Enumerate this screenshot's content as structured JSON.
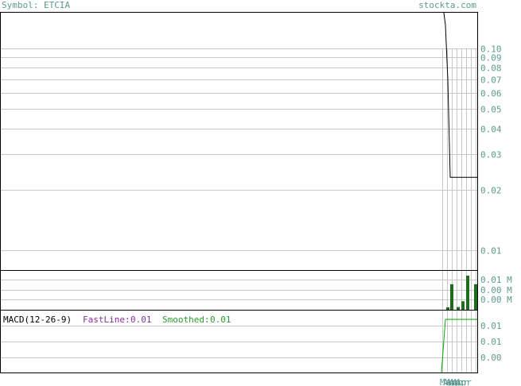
{
  "header": {
    "symbol_label": "Symbol: ETCIA",
    "site": "stockta.com"
  },
  "macd": {
    "label": "MACD(12-26-9)",
    "fast_label": "FastLine:",
    "fast_value": "0.01",
    "smooth_label": "Smoothed:",
    "smooth_value": "0.01"
  },
  "colors": {
    "text_teal": "#5b9a8f",
    "grid": "#c8c8c8",
    "frame": "#000000",
    "price_line": "#000000",
    "volume_bar": "#1f6b1f",
    "macd_fast": "#00aa00",
    "fast_label": "#8b2fa0",
    "smooth_label": "#2e9a2e"
  },
  "chart_data": [
    {
      "type": "line",
      "panel": "price",
      "scale": "log",
      "y_ticks": [
        0.1,
        0.09,
        0.08,
        0.07,
        0.06,
        0.05,
        0.04,
        0.03,
        0.02,
        0.01
      ],
      "y_tick_labels": [
        "0.10",
        "0.09",
        "0.08",
        "0.07",
        "0.06",
        "0.05",
        "0.04",
        "0.03",
        "0.02",
        "0.01"
      ],
      "ylim": [
        0.008,
        0.15
      ],
      "series": [
        {
          "values": [
            0.15,
            0.13,
            0.07,
            0.023,
            0.023,
            0.023,
            0.023,
            0.023,
            0.023
          ]
        }
      ]
    },
    {
      "type": "bar",
      "panel": "volume",
      "y_tick_labels": [
        "0.01 M",
        "0.00 M",
        "0.00 M"
      ],
      "series": [
        {
          "values": [
            0.001,
            0.0105,
            0.0011,
            0.0035,
            0.014,
            0.0105
          ]
        }
      ]
    },
    {
      "type": "line",
      "panel": "macd",
      "y_tick_labels": [
        "0.01",
        "0.01",
        "0.00"
      ],
      "ylim": [
        -0.002,
        0.012
      ],
      "series": [
        {
          "values": [
            -0.002,
            0.01,
            0.01,
            0.01,
            0.01,
            0.01,
            0.01,
            0.01
          ]
        }
      ]
    }
  ],
  "x_axis": {
    "tick_labels": [
      "Mar",
      "Apr",
      "Apr",
      "Apr",
      "Apr",
      "Apr"
    ]
  }
}
